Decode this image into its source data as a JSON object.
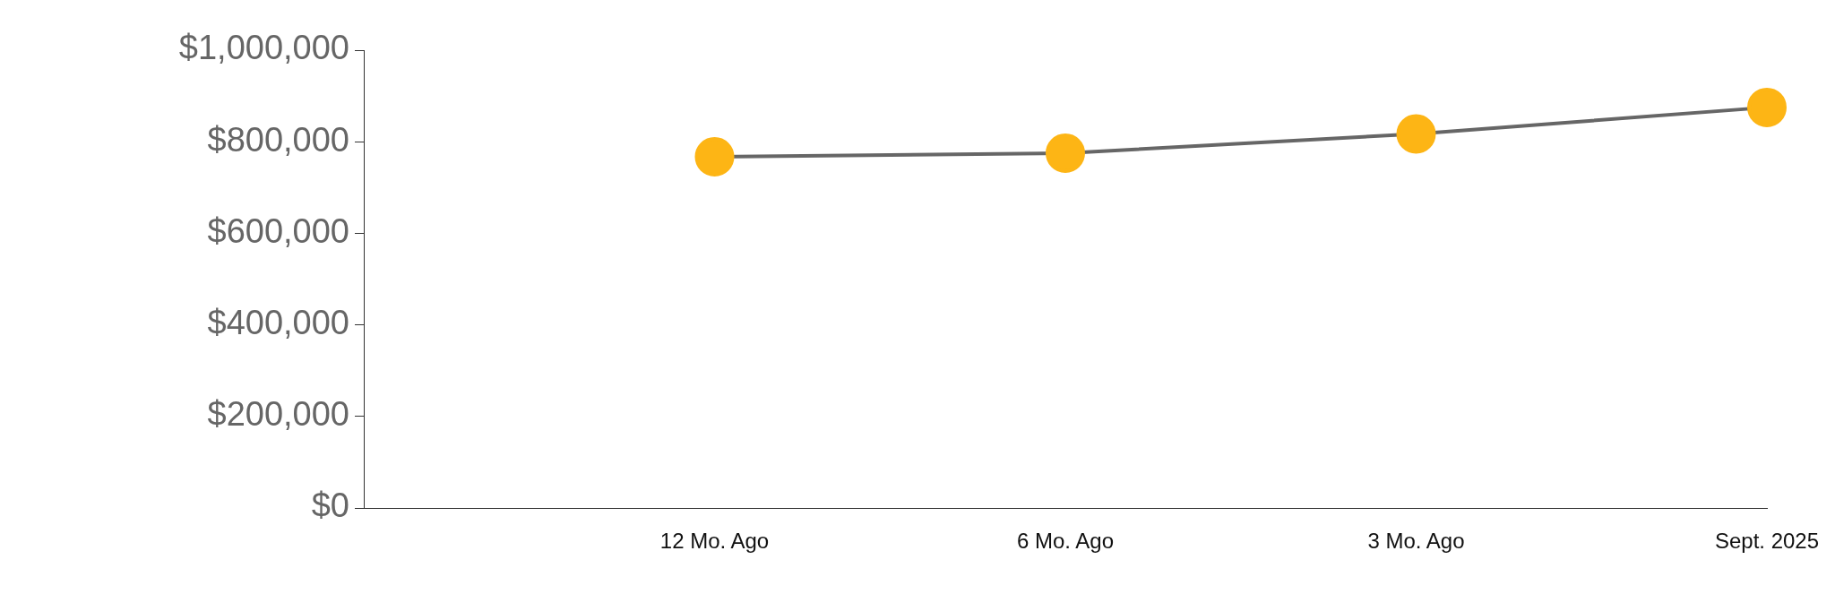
{
  "chart_data": {
    "type": "line",
    "categories": [
      null,
      "12 Mo. Ago",
      "6 Mo. Ago",
      "3 Mo. Ago",
      "Sept. 2025"
    ],
    "series": [
      {
        "color": "#fdb515",
        "values": [
          null,
          767000,
          775000,
          817000,
          875000
        ]
      }
    ],
    "ylim": [
      0,
      1000000
    ],
    "yticks": [
      {
        "value": 0,
        "label": "$0"
      },
      {
        "value": 200000,
        "label": "$200,000"
      },
      {
        "value": 400000,
        "label": "$400,000"
      },
      {
        "value": 600000,
        "label": "$600,000"
      },
      {
        "value": 800000,
        "label": "$800,000"
      },
      {
        "value": 1000000,
        "label": "$1,000,000"
      }
    ],
    "grid": false,
    "legend": false,
    "marker": "circle",
    "line_style": "solid"
  }
}
